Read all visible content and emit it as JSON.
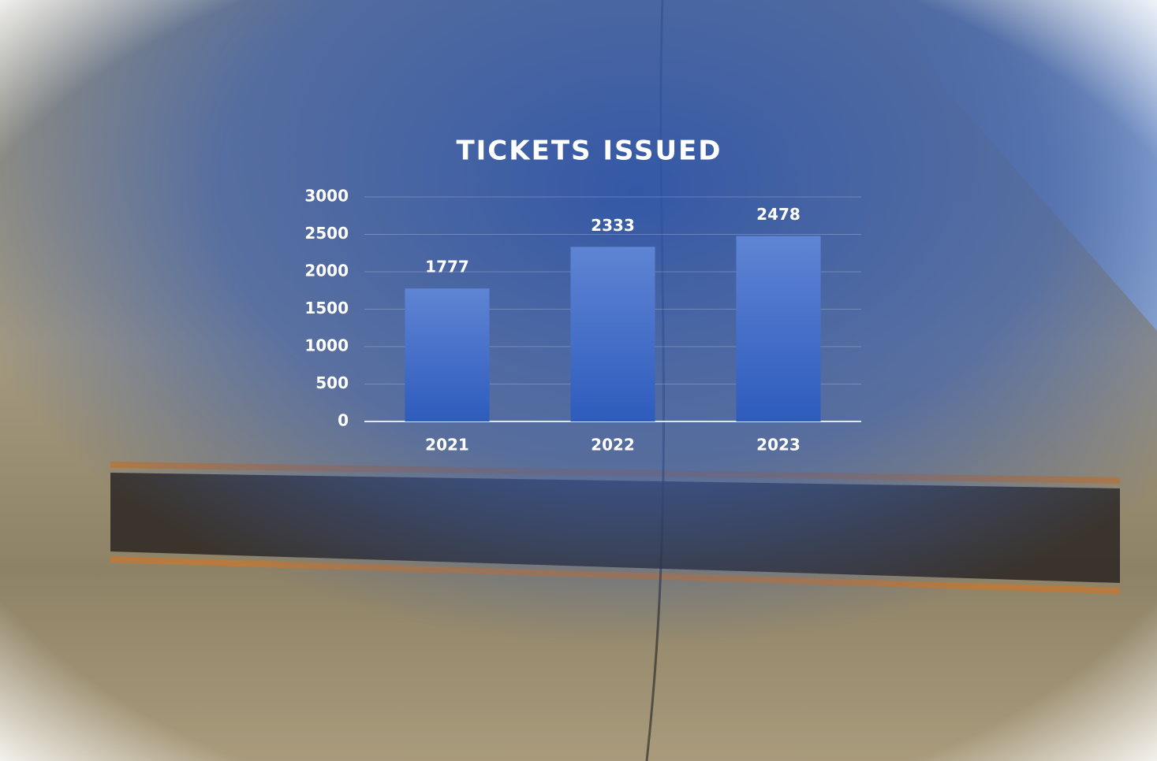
{
  "chart_data": {
    "type": "bar",
    "title": "TICKETS ISSUED",
    "categories": [
      "2021",
      "2022",
      "2023"
    ],
    "values": [
      1777,
      2333,
      2478
    ],
    "color": "#3f68c8",
    "ylim": [
      0,
      3000
    ],
    "yticks": [
      0,
      500,
      1000,
      1500,
      2000,
      2500,
      3000
    ],
    "grid": true
  }
}
